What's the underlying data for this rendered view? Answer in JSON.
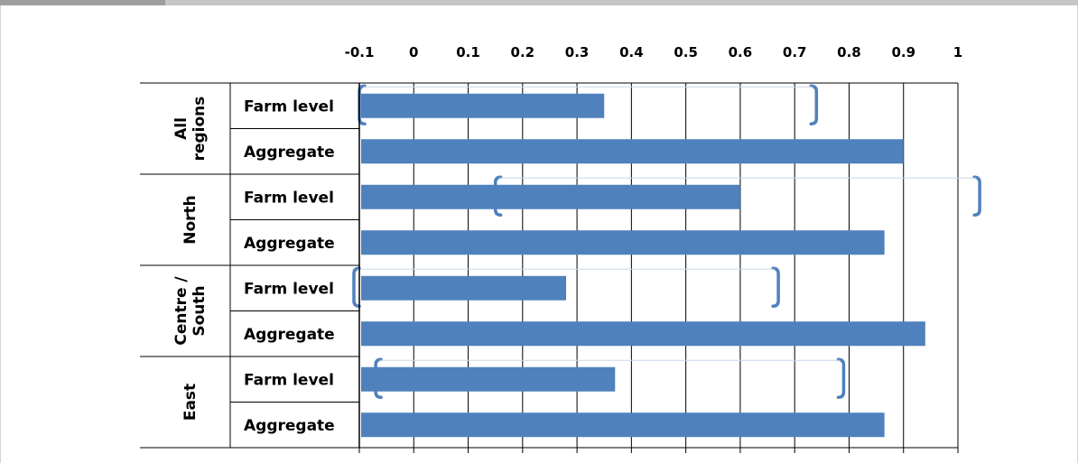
{
  "chart_data": {
    "type": "bar",
    "orientation": "horizontal",
    "title": "",
    "xlabel": "",
    "ylabel": "",
    "xlim": [
      -0.1,
      1.0
    ],
    "x_ticks": [
      "-0.1",
      "0",
      "0.1",
      "0.2",
      "0.3",
      "0.4",
      "0.5",
      "0.6",
      "0.7",
      "0.8",
      "0.9",
      "1"
    ],
    "grid": true,
    "legend": "none",
    "groups": [
      {
        "name": "All\nregions",
        "rows": [
          {
            "label": "Farm level",
            "value": 0.35,
            "ci": [
              -0.1,
              0.74
            ]
          },
          {
            "label": "Aggregate",
            "value": 0.9
          }
        ]
      },
      {
        "name": "North",
        "rows": [
          {
            "label": "Farm level",
            "value": 0.6,
            "ci": [
              0.15,
              1.04
            ]
          },
          {
            "label": "Aggregate",
            "value": 0.865
          }
        ]
      },
      {
        "name": "Centre /\nSouth",
        "rows": [
          {
            "label": "Farm level",
            "value": 0.28,
            "ci": [
              -0.11,
              0.67
            ]
          },
          {
            "label": "Aggregate",
            "value": 0.94
          }
        ]
      },
      {
        "name": "East",
        "rows": [
          {
            "label": "Farm level",
            "value": 0.37,
            "ci": [
              -0.07,
              0.79
            ]
          },
          {
            "label": "Aggregate",
            "value": 0.865
          }
        ]
      }
    ],
    "colors": {
      "bar": "#4f81bd",
      "ci_bracket": "#4f81bd",
      "grid": "#000000",
      "background": "#ffffff"
    }
  }
}
